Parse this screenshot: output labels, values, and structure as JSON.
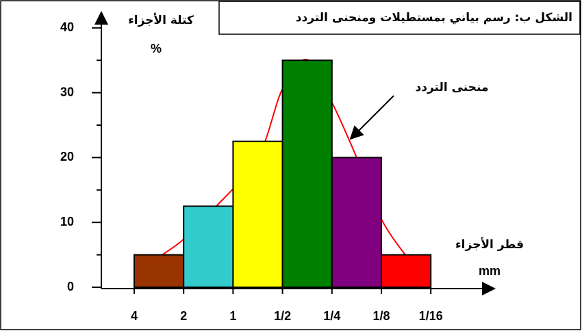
{
  "chart_data": {
    "type": "histogram",
    "title": "الشكل ب: رسم بياني بمستطيلات ومنحنى التردد",
    "ylabel": "كتلة الأجزاء",
    "yunit": "%",
    "xlabel": "قطر الأجزاء",
    "xunit": "mm",
    "bins": [
      "4",
      "2",
      "1",
      "1/2",
      "1/4",
      "1/8",
      "1/16"
    ],
    "values": [
      5,
      12.5,
      22.5,
      35,
      20,
      5
    ],
    "colors": [
      "#993300",
      "#33cccc",
      "#ffff00",
      "#008000",
      "#800080",
      "#ff0000"
    ],
    "ylim": [
      0,
      42.4
    ],
    "yticks": [
      0,
      10,
      20,
      30,
      40
    ],
    "yticks_minor": [
      5,
      15,
      25,
      35
    ],
    "curve": {
      "name": "منحنى التردد",
      "color": "#ff0000",
      "x": [
        0.47,
        1,
        1.6,
        2.5,
        3,
        3.5,
        4,
        4.5,
        5,
        5.53
      ],
      "values": [
        4.5,
        7.4,
        12,
        20,
        30.6,
        35.1,
        28.5,
        20,
        10.5,
        4.5
      ]
    }
  }
}
